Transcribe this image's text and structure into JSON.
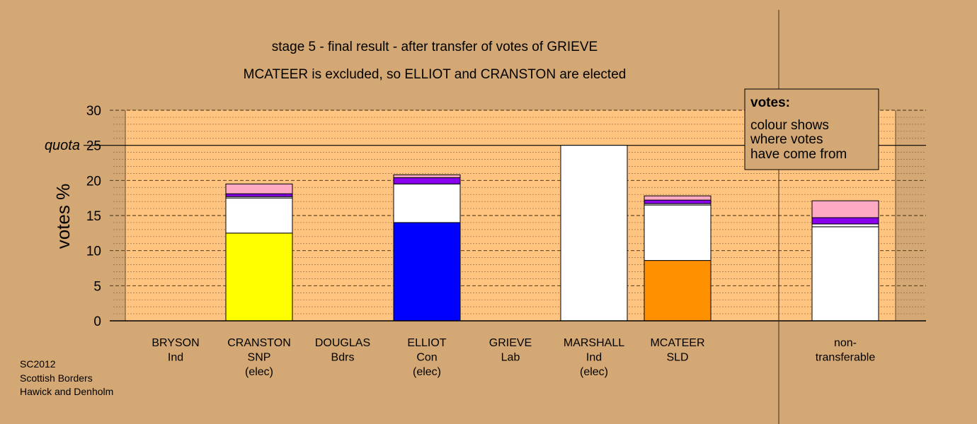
{
  "titles": {
    "line1": "stage 5 - final result - after transfer of votes of GRIEVE",
    "line2": "MCATEER is excluded, so ELLIOT and CRANSTON are elected"
  },
  "legend": {
    "title": "votes:",
    "lines": [
      "colour shows",
      "where votes",
      "have come from"
    ]
  },
  "source": {
    "lines": [
      "SC2012",
      "Scottish Borders",
      "Hawick and Denholm"
    ]
  },
  "colors": {
    "background": "#d4a874",
    "plot_area": "#ffc47f",
    "SNP": "#ffff00",
    "Con": "#0000ff",
    "SLD": "#ff9000",
    "Ind": "#ffffff",
    "Bdrs": "#8800ee",
    "Lab": "#ffaac4"
  },
  "chart_data": {
    "type": "bar",
    "stacked": true,
    "ylabel": "votes %",
    "ylim": [
      0,
      30
    ],
    "yticks": [
      0,
      5,
      10,
      15,
      20,
      25,
      30
    ],
    "quota": {
      "label": "quota",
      "value": 25
    },
    "grid": true,
    "categories": [
      {
        "name": "BRYSON",
        "party": "Ind",
        "status": ""
      },
      {
        "name": "CRANSTON",
        "party": "SNP",
        "status": "(elec)"
      },
      {
        "name": "DOUGLAS",
        "party": "Bdrs",
        "status": ""
      },
      {
        "name": "ELLIOT",
        "party": "Con",
        "status": "(elec)"
      },
      {
        "name": "GRIEVE",
        "party": "Lab",
        "status": ""
      },
      {
        "name": "MARSHALL",
        "party": "Ind",
        "status": "(elec)"
      },
      {
        "name": "MCATEER",
        "party": "SLD",
        "status": ""
      },
      {
        "name": "non-",
        "party": "transferable",
        "status": ""
      }
    ],
    "bars": [
      [],
      [
        {
          "source": "SNP",
          "value": 12.5
        },
        {
          "source": "Ind",
          "value": 5.0
        },
        {
          "source": "Ind",
          "value": 0.2
        },
        {
          "source": "Bdrs",
          "value": 0.4
        },
        {
          "source": "Lab",
          "value": 1.4
        }
      ],
      [],
      [
        {
          "source": "Con",
          "value": 14.0
        },
        {
          "source": "Ind",
          "value": 5.5
        },
        {
          "source": "Bdrs",
          "value": 0.9
        },
        {
          "source": "Lab",
          "value": 0.4
        }
      ],
      [],
      [
        {
          "source": "Ind",
          "value": 25.0
        }
      ],
      [
        {
          "source": "SLD",
          "value": 8.6
        },
        {
          "source": "Ind",
          "value": 7.9
        },
        {
          "source": "Ind",
          "value": 0.2
        },
        {
          "source": "Bdrs",
          "value": 0.5
        },
        {
          "source": "Lab",
          "value": 0.6
        }
      ],
      [
        {
          "source": "Ind",
          "value": 13.4
        },
        {
          "source": "Ind",
          "value": 0.4
        },
        {
          "source": "Bdrs",
          "value": 0.9
        },
        {
          "source": "Lab",
          "value": 2.4
        }
      ]
    ]
  }
}
